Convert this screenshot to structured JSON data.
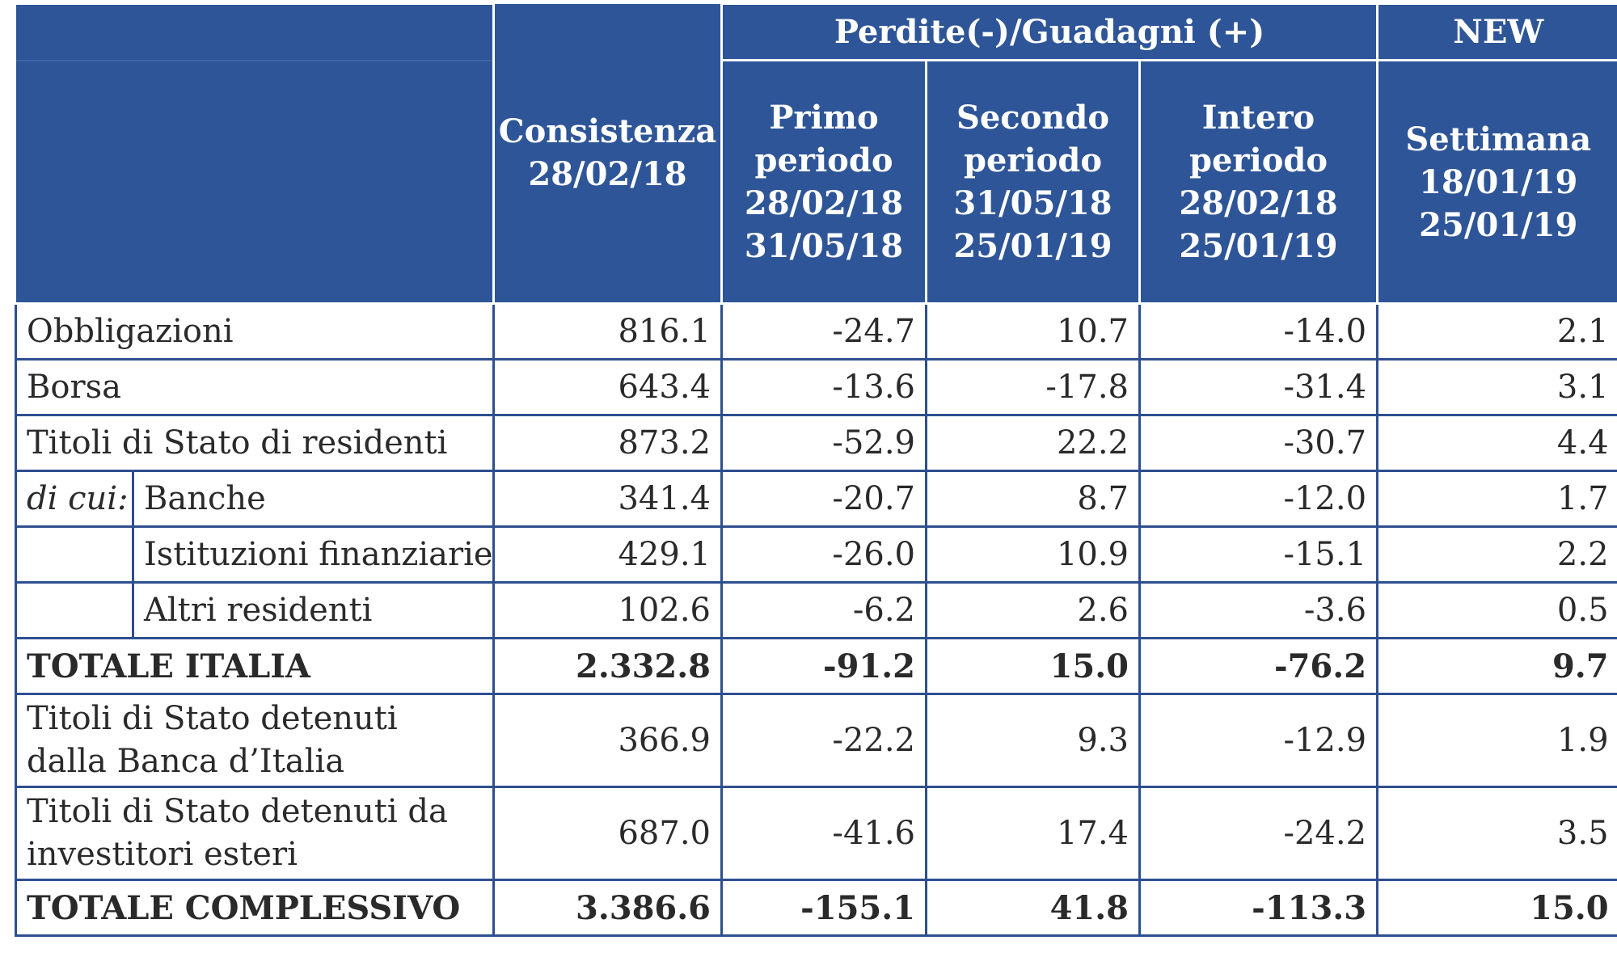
{
  "header": {
    "group_label": "Perdite(-)/Guadagni (+)",
    "new_label": "NEW",
    "consistenza": [
      "Consistenza",
      "28/02/18"
    ],
    "primo": [
      "Primo",
      "periodo",
      "28/02/18",
      "31/05/18"
    ],
    "secondo": [
      "Secondo",
      "periodo",
      "31/05/18",
      "25/01/19"
    ],
    "intero": [
      "Intero",
      "periodo",
      "28/02/18",
      "25/01/19"
    ],
    "settimana": [
      "Settimana",
      "18/01/19",
      "25/01/19"
    ]
  },
  "rows": [
    {
      "label": "Obbligazioni",
      "values": [
        "816.1",
        "-24.7",
        "10.7",
        "-14.0",
        "2.1"
      ]
    },
    {
      "label": "Borsa",
      "values": [
        "643.4",
        "-13.6",
        "-17.8",
        "-31.4",
        "3.1"
      ]
    },
    {
      "label": "Titoli di Stato di residenti",
      "values": [
        "873.2",
        "-52.9",
        "22.2",
        "-30.7",
        "4.4"
      ]
    },
    {
      "prefix": "di cui:",
      "label": "Banche",
      "values": [
        "341.4",
        "-20.7",
        "8.7",
        "-12.0",
        "1.7"
      ]
    },
    {
      "label": "Istituzioni finanziarie",
      "values": [
        "429.1",
        "-26.0",
        "10.9",
        "-15.1",
        "2.2"
      ]
    },
    {
      "label": "Altri residenti",
      "values": [
        "102.6",
        "-6.2",
        "2.6",
        "-3.6",
        "0.5"
      ]
    },
    {
      "label": "TOTALE ITALIA",
      "values": [
        "2.332.8",
        "-91.2",
        "15.0",
        "-76.2",
        "9.7"
      ]
    },
    {
      "label": "Titoli di Stato detenuti dalla Banca d’Italia",
      "values": [
        "366.9",
        "-22.2",
        "9.3",
        "-12.9",
        "1.9"
      ]
    },
    {
      "label": "Titoli di Stato detenuti da investitori esteri",
      "values": [
        "687.0",
        "-41.6",
        "17.4",
        "-24.2",
        "3.5"
      ]
    },
    {
      "label": "TOTALE COMPLESSIVO",
      "values": [
        "3.386.6",
        "-155.1",
        "41.8",
        "-113.3",
        "15.0"
      ]
    }
  ],
  "colors": {
    "header_bg": "#2e5597",
    "grid": "#2e4f8f",
    "header_text": "#ffffff",
    "body_text": "#2a2a2a"
  }
}
